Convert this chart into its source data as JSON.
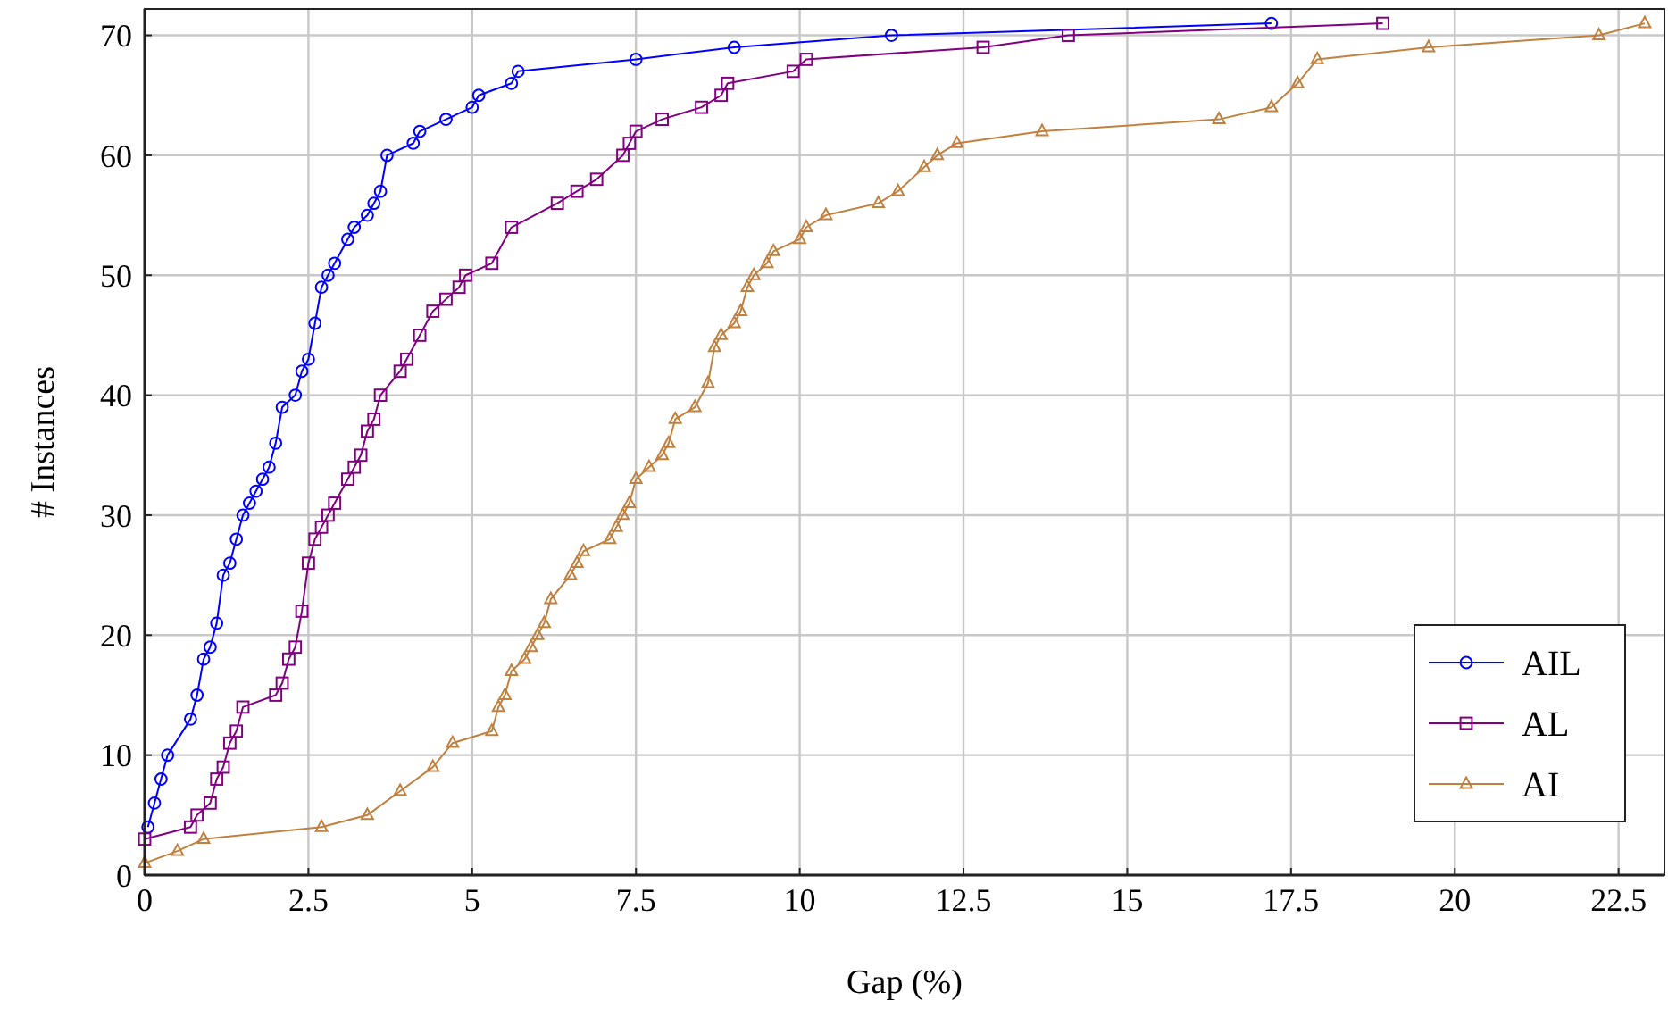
{
  "chart_data": {
    "type": "line",
    "xlabel": "Gap (%)",
    "ylabel": "# Instances",
    "xlim": [
      0,
      23.2
    ],
    "ylim": [
      0,
      72.2
    ],
    "xticks": [
      0,
      2.5,
      5,
      7.5,
      10,
      12.5,
      15,
      17.5,
      20,
      22.5
    ],
    "yticks": [
      0,
      10,
      20,
      30,
      40,
      50,
      60,
      70
    ],
    "grid": true,
    "legend": "bottom right",
    "line_style": "solid",
    "series": [
      {
        "name": "AIL",
        "color": "#0000ff",
        "marker": "circle",
        "x": [
          0.05,
          0.15,
          0.25,
          0.35,
          0.7,
          0.8,
          0.9,
          1.0,
          1.1,
          1.2,
          1.3,
          1.4,
          1.5,
          1.6,
          1.7,
          1.8,
          1.9,
          2.0,
          2.1,
          2.3,
          2.4,
          2.5,
          2.6,
          2.7,
          2.8,
          2.9,
          3.1,
          3.2,
          3.4,
          3.5,
          3.6,
          3.7,
          4.1,
          4.2,
          4.6,
          5.0,
          5.1,
          5.6,
          5.7,
          7.5,
          9.0,
          11.4,
          17.2
        ],
        "values": [
          4,
          6,
          8,
          10,
          13,
          15,
          18,
          19,
          21,
          25,
          26,
          28,
          30,
          31,
          32,
          33,
          34,
          36,
          39,
          40,
          42,
          43,
          46,
          49,
          50,
          51,
          53,
          54,
          55,
          56,
          57,
          60,
          61,
          62,
          63,
          64,
          65,
          66,
          67,
          68,
          69,
          70,
          71
        ]
      },
      {
        "name": "AL",
        "color": "#800080",
        "marker": "square",
        "x": [
          0.0,
          0.7,
          0.8,
          1.0,
          1.1,
          1.2,
          1.3,
          1.4,
          1.5,
          2.0,
          2.1,
          2.2,
          2.3,
          2.4,
          2.5,
          2.6,
          2.7,
          2.8,
          2.9,
          3.1,
          3.2,
          3.3,
          3.4,
          3.5,
          3.6,
          3.9,
          4.0,
          4.2,
          4.4,
          4.6,
          4.8,
          4.9,
          5.3,
          5.6,
          6.3,
          6.6,
          6.9,
          7.3,
          7.4,
          7.5,
          7.9,
          8.5,
          8.8,
          8.9,
          9.9,
          10.1,
          12.8,
          14.1,
          18.9
        ],
        "values": [
          3,
          4,
          5,
          6,
          8,
          9,
          11,
          12,
          14,
          15,
          16,
          18,
          19,
          22,
          26,
          28,
          29,
          30,
          31,
          33,
          34,
          35,
          37,
          38,
          40,
          42,
          43,
          45,
          47,
          48,
          49,
          50,
          51,
          54,
          56,
          57,
          58,
          60,
          61,
          62,
          63,
          64,
          65,
          66,
          67,
          68,
          69,
          70,
          71
        ]
      },
      {
        "name": "AI",
        "color": "#bf8040",
        "marker": "triangle",
        "x": [
          0.0,
          0.5,
          0.9,
          2.7,
          3.4,
          3.9,
          4.4,
          4.7,
          5.3,
          5.4,
          5.5,
          5.6,
          5.8,
          5.9,
          6.0,
          6.1,
          6.2,
          6.5,
          6.6,
          6.7,
          7.1,
          7.2,
          7.3,
          7.4,
          7.5,
          7.7,
          7.9,
          8.0,
          8.1,
          8.4,
          8.6,
          8.7,
          8.8,
          9.0,
          9.1,
          9.2,
          9.3,
          9.5,
          9.6,
          10.0,
          10.1,
          10.4,
          11.2,
          11.5,
          11.9,
          12.1,
          12.4,
          13.7,
          16.4,
          17.2,
          17.6,
          17.9,
          19.6,
          22.2,
          22.9
        ],
        "values": [
          1,
          2,
          3,
          4,
          5,
          7,
          9,
          11,
          12,
          14,
          15,
          17,
          18,
          19,
          20,
          21,
          23,
          25,
          26,
          27,
          28,
          29,
          30,
          31,
          33,
          34,
          35,
          36,
          38,
          39,
          41,
          44,
          45,
          46,
          47,
          49,
          50,
          51,
          52,
          53,
          54,
          55,
          56,
          57,
          59,
          60,
          61,
          62,
          63,
          64,
          66,
          68,
          69,
          70,
          71
        ]
      }
    ]
  }
}
